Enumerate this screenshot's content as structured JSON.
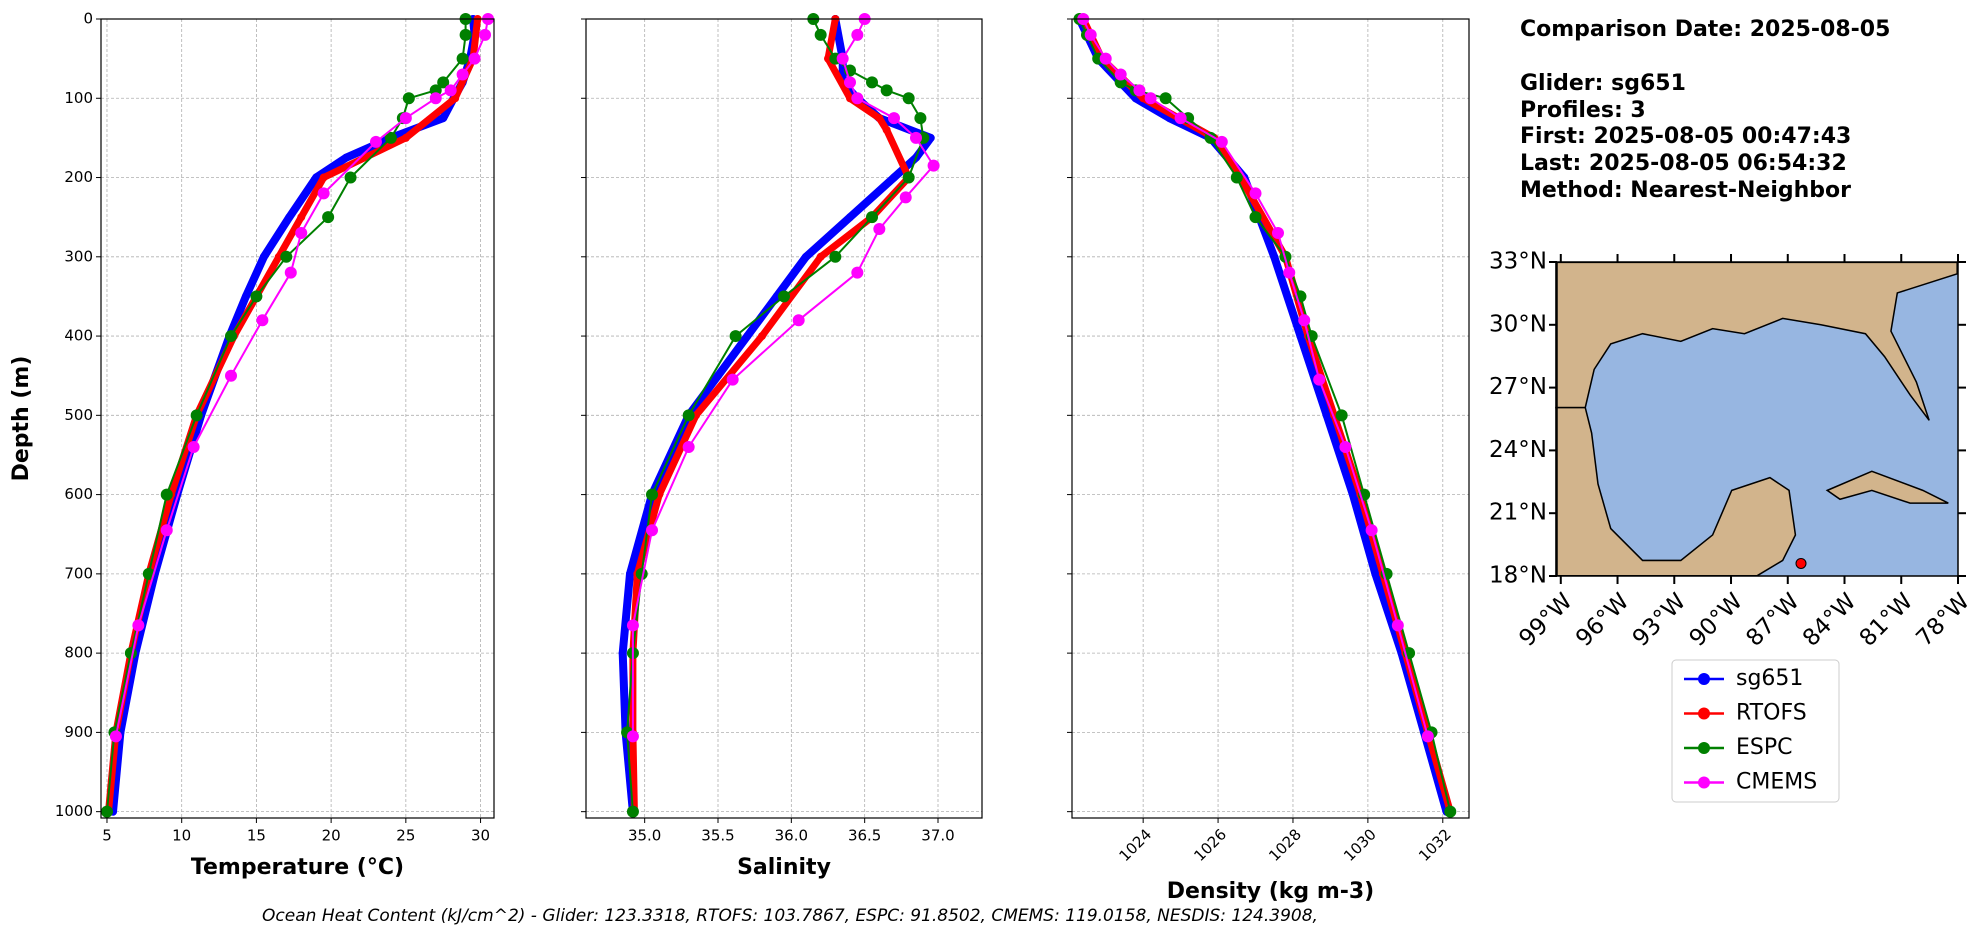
{
  "chart_data": [
    {
      "type": "line",
      "xlabel": "Temperature (°C)",
      "ylabel": "Depth (m)",
      "xlim": [
        4.6,
        30.9
      ],
      "ylim": [
        0,
        1008
      ],
      "y_inverted": true,
      "grid": true,
      "xticks": [
        5,
        10,
        15,
        20,
        25,
        30
      ],
      "yticks": [
        0,
        100,
        200,
        300,
        400,
        500,
        600,
        700,
        800,
        900,
        1000
      ],
      "series": [
        {
          "name": "sg651",
          "color": "#0000ff",
          "linewidth": 8,
          "y": [
            0,
            20,
            50,
            80,
            100,
            125,
            150,
            175,
            200,
            250,
            300,
            350,
            400,
            500,
            600,
            700,
            800,
            900,
            1000
          ],
          "x": [
            29.5,
            29.6,
            29.3,
            28.8,
            28.2,
            27.5,
            24,
            21,
            19,
            17.2,
            15.5,
            14.3,
            13.2,
            11.3,
            9.7,
            8.2,
            6.9,
            5.9,
            5.4
          ]
        },
        {
          "name": "RTOFS",
          "color": "#ff0000",
          "linewidth": 7,
          "y": [
            0,
            50,
            100,
            150,
            200,
            250,
            300,
            400,
            500,
            600,
            700,
            800,
            900,
            1000
          ],
          "x": [
            29.8,
            29.5,
            28.3,
            25,
            19.5,
            18,
            16.5,
            13.5,
            11,
            9.3,
            7.8,
            6.6,
            5.6,
            5.1
          ]
        },
        {
          "name": "ESPC",
          "color": "#008000",
          "linewidth": 2,
          "y": [
            0,
            20,
            50,
            80,
            90,
            100,
            125,
            150,
            200,
            250,
            300,
            350,
            400,
            500,
            600,
            700,
            800,
            900,
            1000
          ],
          "x": [
            29.0,
            29.0,
            28.8,
            27.5,
            27,
            25.2,
            24.8,
            24,
            21.3,
            19.8,
            17,
            15,
            13.3,
            11,
            9,
            7.8,
            6.6,
            5.5,
            5.0
          ]
        },
        {
          "name": "CMEMS",
          "color": "#ff00ff",
          "linewidth": 2,
          "y": [
            0,
            20,
            50,
            70,
            90,
            100,
            125,
            155,
            220,
            270,
            320,
            380,
            450,
            540,
            645,
            765,
            905
          ],
          "x": [
            30.5,
            30.3,
            29.6,
            28.8,
            28,
            27,
            25,
            23,
            19.5,
            18,
            17.3,
            15.4,
            13.3,
            10.8,
            9,
            7.1,
            5.6
          ]
        }
      ]
    },
    {
      "type": "line",
      "xlabel": "Salinity",
      "xlim": [
        34.6,
        37.3
      ],
      "ylim": [
        0,
        1008
      ],
      "y_inverted": true,
      "grid": true,
      "ytick_labels": false,
      "xticks": [
        {
          "value": 35,
          "label": "35.0"
        },
        35.5,
        {
          "value": 36,
          "label": "36.0"
        },
        36.5,
        {
          "value": 37,
          "label": "37.0"
        }
      ],
      "yticks": [
        0,
        100,
        200,
        300,
        400,
        500,
        600,
        700,
        800,
        900,
        1000
      ],
      "series": [
        {
          "name": "sg651",
          "color": "#0000ff",
          "linewidth": 8,
          "y": [
            0,
            50,
            80,
            100,
            125,
            150,
            175,
            200,
            250,
            300,
            350,
            400,
            450,
            500,
            600,
            700,
            800,
            900,
            1000
          ],
          "x": [
            36.3,
            36.35,
            36.35,
            36.45,
            36.6,
            36.95,
            36.85,
            36.7,
            36.4,
            36.1,
            35.9,
            35.7,
            35.5,
            35.3,
            35.05,
            34.9,
            34.85,
            34.87,
            34.92
          ]
        },
        {
          "name": "RTOFS",
          "color": "#ff0000",
          "linewidth": 7,
          "y": [
            0,
            50,
            100,
            125,
            140,
            200,
            250,
            300,
            400,
            500,
            600,
            700,
            800,
            900,
            1000
          ],
          "x": [
            36.3,
            36.25,
            36.4,
            36.6,
            36.65,
            36.8,
            36.55,
            36.2,
            35.8,
            35.35,
            35.1,
            34.95,
            34.92,
            34.92,
            34.93
          ]
        },
        {
          "name": "ESPC",
          "color": "#008000",
          "linewidth": 2,
          "y": [
            0,
            20,
            50,
            65,
            80,
            90,
            100,
            125,
            150,
            200,
            250,
            300,
            350,
            400,
            500,
            600,
            700,
            800,
            900,
            1000
          ],
          "x": [
            36.15,
            36.2,
            36.3,
            36.4,
            36.55,
            36.65,
            36.8,
            36.88,
            36.9,
            36.8,
            36.55,
            36.3,
            35.95,
            35.62,
            35.3,
            35.05,
            34.98,
            34.92,
            34.88,
            34.92
          ]
        },
        {
          "name": "CMEMS",
          "color": "#ff00ff",
          "linewidth": 2,
          "y": [
            0,
            20,
            50,
            80,
            100,
            125,
            150,
            185,
            225,
            265,
            320,
            380,
            455,
            540,
            645,
            765,
            905
          ],
          "x": [
            36.5,
            36.45,
            36.35,
            36.4,
            36.45,
            36.7,
            36.85,
            36.97,
            36.78,
            36.6,
            36.45,
            36.05,
            35.6,
            35.3,
            35.05,
            34.92,
            34.92
          ]
        }
      ]
    },
    {
      "type": "line",
      "xlabel": "Density (kg m-3)",
      "xlim": [
        1022.1,
        1032.7
      ],
      "ylim": [
        0,
        1008
      ],
      "y_inverted": true,
      "grid": true,
      "ytick_labels": false,
      "xtick_rotation": 45,
      "xticks": [
        1024,
        1026,
        1028,
        1030,
        1032
      ],
      "yticks": [
        0,
        100,
        200,
        300,
        400,
        500,
        600,
        700,
        800,
        900,
        1000
      ],
      "series": [
        {
          "name": "sg651",
          "color": "#0000ff",
          "linewidth": 8,
          "y": [
            0,
            50,
            100,
            125,
            150,
            200,
            250,
            300,
            400,
            500,
            600,
            700,
            800,
            900,
            1000
          ],
          "x": [
            1022.3,
            1022.8,
            1023.8,
            1024.7,
            1025.8,
            1026.7,
            1027.1,
            1027.5,
            1028.2,
            1028.9,
            1029.6,
            1030.2,
            1030.9,
            1031.5,
            1032.1
          ]
        },
        {
          "name": "RTOFS",
          "color": "#ff0000",
          "linewidth": 7,
          "y": [
            0,
            50,
            100,
            150,
            200,
            300,
            400,
            500,
            600,
            700,
            800,
            900,
            1000
          ],
          "x": [
            1022.4,
            1022.9,
            1024.0,
            1025.9,
            1026.6,
            1027.8,
            1028.4,
            1029.1,
            1029.8,
            1030.4,
            1031.0,
            1031.6,
            1032.2
          ]
        },
        {
          "name": "ESPC",
          "color": "#008000",
          "linewidth": 2,
          "y": [
            0,
            20,
            50,
            80,
            90,
            100,
            125,
            150,
            200,
            250,
            300,
            350,
            400,
            500,
            600,
            700,
            800,
            900,
            1000
          ],
          "x": [
            1022.3,
            1022.5,
            1022.8,
            1023.4,
            1023.8,
            1024.6,
            1025.2,
            1025.8,
            1026.5,
            1027,
            1027.8,
            1028.2,
            1028.5,
            1029.3,
            1029.9,
            1030.5,
            1031.1,
            1031.7,
            1032.2
          ]
        },
        {
          "name": "CMEMS",
          "color": "#ff00ff",
          "linewidth": 2,
          "y": [
            0,
            20,
            50,
            70,
            90,
            100,
            125,
            155,
            220,
            270,
            320,
            380,
            455,
            540,
            645,
            765,
            905
          ],
          "x": [
            1022.4,
            1022.6,
            1023.0,
            1023.4,
            1023.9,
            1024.2,
            1025.0,
            1026.1,
            1027,
            1027.6,
            1027.9,
            1028.3,
            1028.7,
            1029.4,
            1030.1,
            1030.8,
            1031.6
          ]
        }
      ]
    }
  ],
  "info": {
    "title": "Comparison Date: 2025-08-05",
    "lines": [
      "Glider: sg651",
      "Profiles: 3",
      "First: 2025-08-05 00:47:43",
      "Last: 2025-08-05 06:54:32",
      "Method: Nearest-Neighbor"
    ]
  },
  "map": {
    "xlim": [
      -99.2,
      -78
    ],
    "ylim": [
      18,
      33
    ],
    "lon_ticks": [
      {
        "value": -99,
        "label": "99°W"
      },
      {
        "value": -96,
        "label": "96°W"
      },
      {
        "value": -93,
        "label": "93°W"
      },
      {
        "value": -90,
        "label": "90°W"
      },
      {
        "value": -87,
        "label": "87°W"
      },
      {
        "value": -84,
        "label": "84°W"
      },
      {
        "value": -81,
        "label": "81°W"
      },
      {
        "value": -78,
        "label": "78°W"
      }
    ],
    "lat_ticks": [
      {
        "value": 18,
        "label": "18°N"
      },
      {
        "value": 21,
        "label": "21°N"
      },
      {
        "value": 24,
        "label": "24°N"
      },
      {
        "value": 27,
        "label": "27°N"
      },
      {
        "value": 30,
        "label": "30°N"
      },
      {
        "value": 33,
        "label": "33°N"
      }
    ],
    "point": {
      "lon": -86.3,
      "lat": 18.6,
      "color": "#ff0000"
    }
  },
  "footer": "Ocean Heat Content (kJ/cm^2) - Glider: 123.3318,  RTOFS: 103.7867,  ESPC: 91.8502,  CMEMS: 119.0158,  NESDIS: 124.3908,"
}
